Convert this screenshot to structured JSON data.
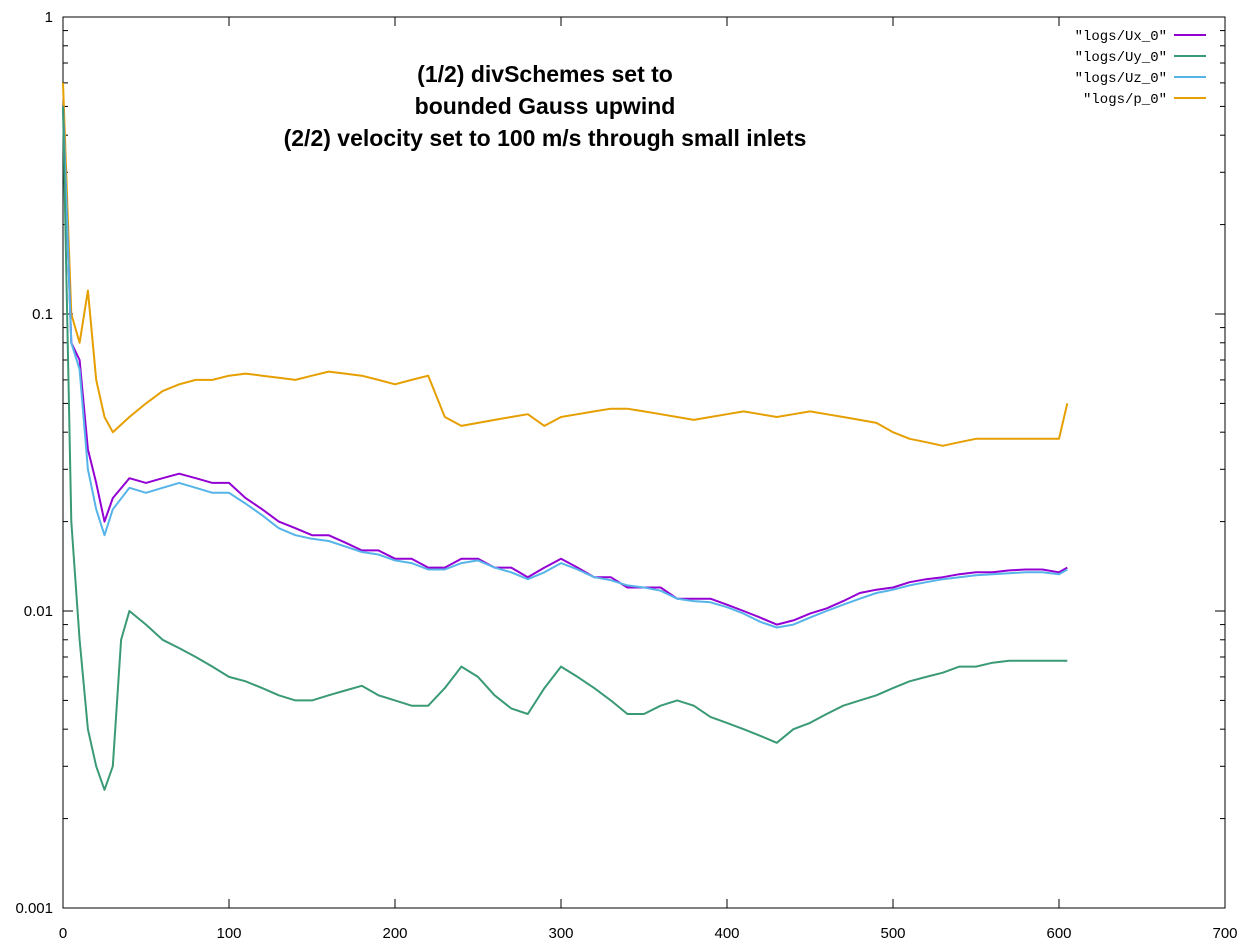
{
  "chart_data": {
    "type": "line",
    "title_lines": [
      "(1/2) divSchemes set to",
      "bounded Gauss upwind",
      "(2/2) velocity set to 100 m/s through small inlets"
    ],
    "xlabel": "",
    "ylabel": "",
    "xlim": [
      0,
      700
    ],
    "ylim": [
      0.001,
      1
    ],
    "yscale": "log",
    "grid": false,
    "legend_position": "top-right",
    "x_ticks": [
      {
        "value": 0,
        "label": "0"
      },
      {
        "value": 100,
        "label": "100"
      },
      {
        "value": 200,
        "label": "200"
      },
      {
        "value": 300,
        "label": "300"
      },
      {
        "value": 400,
        "label": "400"
      },
      {
        "value": 500,
        "label": "500"
      },
      {
        "value": 600,
        "label": "600"
      },
      {
        "value": 700,
        "label": "700"
      }
    ],
    "y_ticks": [
      {
        "value": 1,
        "label": "1"
      },
      {
        "value": 0.1,
        "label": "0.1"
      },
      {
        "value": 0.01,
        "label": "0.01"
      },
      {
        "value": 0.001,
        "label": "0.001"
      }
    ],
    "series": [
      {
        "name": "\"logs/Ux_0\"",
        "color": "#9400d3",
        "x": [
          0,
          5,
          10,
          15,
          20,
          25,
          30,
          40,
          50,
          60,
          70,
          80,
          90,
          100,
          110,
          120,
          130,
          140,
          150,
          160,
          170,
          180,
          190,
          200,
          210,
          220,
          230,
          240,
          250,
          260,
          270,
          280,
          290,
          300,
          310,
          320,
          330,
          340,
          350,
          360,
          370,
          380,
          390,
          400,
          410,
          420,
          430,
          440,
          450,
          460,
          470,
          480,
          490,
          500,
          510,
          520,
          530,
          540,
          550,
          560,
          570,
          580,
          590,
          600,
          605
        ],
        "y": [
          0.5,
          0.08,
          0.07,
          0.035,
          0.027,
          0.02,
          0.024,
          0.028,
          0.027,
          0.028,
          0.029,
          0.028,
          0.027,
          0.027,
          0.024,
          0.022,
          0.02,
          0.019,
          0.018,
          0.018,
          0.017,
          0.016,
          0.016,
          0.015,
          0.015,
          0.014,
          0.014,
          0.015,
          0.015,
          0.014,
          0.014,
          0.013,
          0.014,
          0.015,
          0.014,
          0.013,
          0.013,
          0.012,
          0.012,
          0.012,
          0.011,
          0.011,
          0.011,
          0.0105,
          0.01,
          0.0095,
          0.009,
          0.0093,
          0.0098,
          0.0102,
          0.0108,
          0.0115,
          0.0118,
          0.012,
          0.0125,
          0.0128,
          0.013,
          0.0133,
          0.0135,
          0.0135,
          0.0137,
          0.0138,
          0.0138,
          0.0135,
          0.014
        ]
      },
      {
        "name": "\"logs/Uy_0\"",
        "color": "#3a9a75",
        "x": [
          0,
          5,
          10,
          15,
          20,
          25,
          30,
          35,
          40,
          50,
          60,
          70,
          80,
          90,
          100,
          110,
          120,
          130,
          140,
          150,
          160,
          170,
          180,
          190,
          200,
          210,
          220,
          230,
          240,
          250,
          260,
          270,
          280,
          290,
          300,
          310,
          320,
          330,
          340,
          350,
          360,
          370,
          380,
          390,
          400,
          410,
          420,
          430,
          440,
          450,
          460,
          470,
          480,
          490,
          500,
          510,
          520,
          530,
          540,
          550,
          560,
          570,
          580,
          590,
          600,
          605
        ],
        "y": [
          0.5,
          0.02,
          0.008,
          0.004,
          0.003,
          0.0025,
          0.003,
          0.008,
          0.01,
          0.009,
          0.008,
          0.0075,
          0.007,
          0.0065,
          0.006,
          0.0058,
          0.0055,
          0.0052,
          0.005,
          0.005,
          0.0052,
          0.0054,
          0.0056,
          0.0052,
          0.005,
          0.0048,
          0.0048,
          0.0055,
          0.0065,
          0.006,
          0.0052,
          0.0047,
          0.0045,
          0.0055,
          0.0065,
          0.006,
          0.0055,
          0.005,
          0.0045,
          0.0045,
          0.0048,
          0.005,
          0.0048,
          0.0044,
          0.0042,
          0.004,
          0.0038,
          0.0036,
          0.004,
          0.0042,
          0.0045,
          0.0048,
          0.005,
          0.0052,
          0.0055,
          0.0058,
          0.006,
          0.0062,
          0.0065,
          0.0065,
          0.0067,
          0.0068,
          0.0068,
          0.0068,
          0.0068,
          0.0068
        ]
      },
      {
        "name": "\"logs/Uz_0\"",
        "color": "#56b4e9",
        "x": [
          0,
          5,
          10,
          15,
          20,
          25,
          30,
          40,
          50,
          60,
          70,
          80,
          90,
          100,
          110,
          120,
          130,
          140,
          150,
          160,
          170,
          180,
          190,
          200,
          210,
          220,
          230,
          240,
          250,
          260,
          270,
          280,
          290,
          300,
          310,
          320,
          330,
          340,
          350,
          360,
          370,
          380,
          390,
          400,
          410,
          420,
          430,
          440,
          450,
          460,
          470,
          480,
          490,
          500,
          510,
          520,
          530,
          540,
          550,
          560,
          570,
          580,
          590,
          600,
          605
        ],
        "y": [
          0.5,
          0.08,
          0.065,
          0.03,
          0.022,
          0.018,
          0.022,
          0.026,
          0.025,
          0.026,
          0.027,
          0.026,
          0.025,
          0.025,
          0.023,
          0.021,
          0.019,
          0.018,
          0.0175,
          0.0172,
          0.0165,
          0.0158,
          0.0155,
          0.0148,
          0.0145,
          0.0138,
          0.0138,
          0.0145,
          0.0148,
          0.014,
          0.0135,
          0.0128,
          0.0135,
          0.0145,
          0.0138,
          0.013,
          0.0127,
          0.0122,
          0.012,
          0.0117,
          0.011,
          0.0108,
          0.0107,
          0.0103,
          0.0098,
          0.0092,
          0.0088,
          0.009,
          0.0095,
          0.01,
          0.0105,
          0.011,
          0.0115,
          0.0118,
          0.0122,
          0.0125,
          0.0128,
          0.013,
          0.0132,
          0.0133,
          0.0134,
          0.0135,
          0.0135,
          0.0133,
          0.0138
        ]
      },
      {
        "name": "\"logs/p_0\"",
        "color": "#e69f00",
        "x": [
          0,
          5,
          10,
          15,
          20,
          25,
          30,
          40,
          50,
          60,
          70,
          80,
          90,
          100,
          110,
          120,
          130,
          140,
          150,
          160,
          170,
          180,
          190,
          200,
          210,
          220,
          230,
          240,
          250,
          260,
          270,
          280,
          290,
          300,
          310,
          320,
          330,
          340,
          350,
          360,
          370,
          380,
          390,
          400,
          410,
          420,
          430,
          440,
          450,
          460,
          470,
          480,
          490,
          500,
          510,
          520,
          530,
          540,
          550,
          560,
          570,
          580,
          590,
          600,
          605
        ],
        "y": [
          0.6,
          0.1,
          0.08,
          0.12,
          0.06,
          0.045,
          0.04,
          0.045,
          0.05,
          0.055,
          0.058,
          0.06,
          0.06,
          0.062,
          0.063,
          0.062,
          0.061,
          0.06,
          0.062,
          0.064,
          0.063,
          0.062,
          0.06,
          0.058,
          0.06,
          0.062,
          0.045,
          0.042,
          0.043,
          0.044,
          0.045,
          0.046,
          0.042,
          0.045,
          0.046,
          0.047,
          0.048,
          0.048,
          0.047,
          0.046,
          0.045,
          0.044,
          0.045,
          0.046,
          0.047,
          0.046,
          0.045,
          0.046,
          0.047,
          0.046,
          0.045,
          0.044,
          0.043,
          0.04,
          0.038,
          0.037,
          0.036,
          0.037,
          0.038,
          0.038,
          0.038,
          0.038,
          0.038,
          0.038,
          0.05
        ]
      }
    ]
  }
}
